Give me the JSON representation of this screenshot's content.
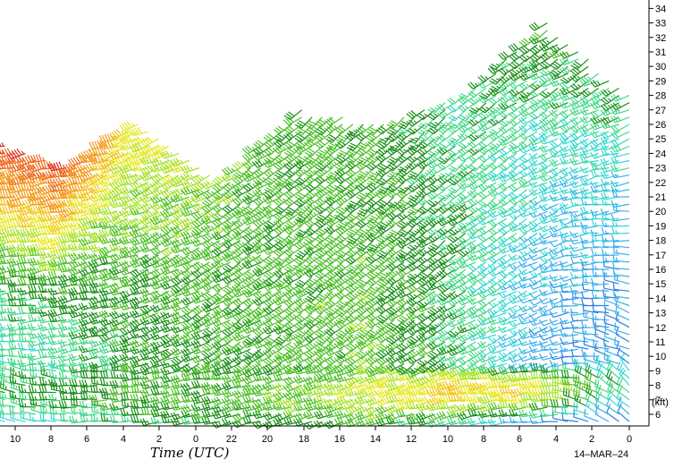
{
  "chart_data": {
    "type": "wind-barb time-height profile",
    "xlabel": "Time (UTC)",
    "date_label": "14–MAR–24",
    "x_tick_labels": [
      "10",
      "8",
      "6",
      "4",
      "2",
      "0",
      "22",
      "20",
      "18",
      "16",
      "14",
      "12",
      "10",
      "8",
      "6",
      "4",
      "2",
      "0"
    ],
    "y_unit_label": "(kft)",
    "y_tick_labels": [
      "6",
      "7",
      "8",
      "9",
      "10",
      "11",
      "12",
      "13",
      "14",
      "15",
      "16",
      "17",
      "18",
      "19",
      "20",
      "21",
      "22",
      "23",
      "24",
      "25",
      "26",
      "27",
      "28",
      "29",
      "30",
      "31",
      "32",
      "33",
      "34"
    ],
    "ylim": [
      5,
      34.5
    ],
    "hours_back_range": [
      0,
      60
    ],
    "grid": false,
    "speed_color_scale": [
      {
        "max_kt": 10,
        "color": "#2e7fe0"
      },
      {
        "max_kt": 15,
        "color": "#3ab0ea"
      },
      {
        "max_kt": 20,
        "color": "#38d8d0"
      },
      {
        "max_kt": 25,
        "color": "#46d889"
      },
      {
        "max_kt": 30,
        "color": "#1a8f1a"
      },
      {
        "max_kt": 35,
        "color": "#4fc02a"
      },
      {
        "max_kt": 40,
        "color": "#a6e22a"
      },
      {
        "max_kt": 45,
        "color": "#e6e81e"
      },
      {
        "max_kt": 50,
        "color": "#f2c419"
      },
      {
        "max_kt": 60,
        "color": "#f39a1c"
      },
      {
        "max_kt": 70,
        "color": "#ee6a1f"
      },
      {
        "max_kt": 999,
        "color": "#d92222"
      }
    ],
    "profile_anchors": [
      {
        "hours_back": 62,
        "top_kft": 25,
        "surface_kt": 25,
        "mid_kt": 20,
        "mid_dir": 270,
        "upper_kt": 75,
        "upper_dir": 260
      },
      {
        "hours_back": 55,
        "top_kft": 23,
        "surface_kt": 28,
        "mid_kt": 22,
        "mid_dir": 260,
        "upper_kt": 70,
        "upper_dir": 255
      },
      {
        "hours_back": 48,
        "top_kft": 26,
        "surface_kt": 30,
        "mid_kt": 28,
        "mid_dir": 250,
        "upper_kt": 45,
        "upper_dir": 250
      },
      {
        "hours_back": 40,
        "top_kft": 22,
        "surface_kt": 32,
        "mid_kt": 30,
        "mid_dir": 240,
        "upper_kt": 35,
        "upper_dir": 240
      },
      {
        "hours_back": 32,
        "top_kft": 27,
        "surface_kt": 35,
        "mid_kt": 32,
        "mid_dir": 235,
        "upper_kt": 30,
        "upper_dir": 230
      },
      {
        "hours_back": 24,
        "top_kft": 26,
        "surface_kt": 42,
        "mid_kt": 33,
        "mid_dir": 235,
        "upper_kt": 30,
        "upper_dir": 225
      },
      {
        "hours_back": 16,
        "top_kft": 28,
        "surface_kt": 50,
        "mid_kt": 25,
        "mid_dir": 240,
        "upper_kt": 22,
        "upper_dir": 230
      },
      {
        "hours_back": 8,
        "top_kft": 33,
        "surface_kt": 45,
        "mid_kt": 12,
        "mid_dir": 250,
        "upper_kt": 30,
        "upper_dir": 235
      },
      {
        "hours_back": 0,
        "top_kft": 28,
        "surface_kt": 22,
        "mid_kt": 10,
        "mid_dir": 300,
        "upper_kt": 25,
        "upper_dir": 240
      }
    ]
  }
}
